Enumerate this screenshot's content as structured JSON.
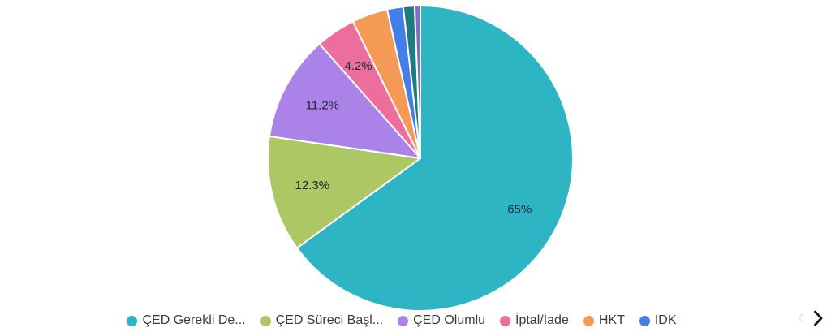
{
  "page": {
    "background": "#ffffff"
  },
  "chart_data": {
    "type": "pie",
    "title": "",
    "start_angle": "top",
    "direction": "clockwise",
    "unit": "%",
    "label_color": "#1d2733",
    "slice_border_color": "#ffffff",
    "label_radius_ratio": 0.73,
    "series": [
      {
        "name": "ÇED Gerekli De...",
        "value": 65,
        "label": "65%",
        "color": "#2eb5c4"
      },
      {
        "name": "ÇED Süreci Başl...",
        "value": 12.3,
        "label": "12.3%",
        "color": "#acc763"
      },
      {
        "name": "ÇED Olumlu",
        "value": 11.2,
        "label": "11.2%",
        "color": "#ab82e8"
      },
      {
        "name": "İptal/İade",
        "value": 4.2,
        "label": "4.2%",
        "color": "#ed6d9d"
      },
      {
        "name": "HKT",
        "value": 3.8,
        "label": "",
        "color": "#f49a54"
      },
      {
        "name": "IDK",
        "value": 1.7,
        "label": "",
        "color": "#4280e8"
      },
      {
        "name": "",
        "value": 1.2,
        "label": "",
        "color": "#1f7a82"
      },
      {
        "name": "",
        "value": 0.6,
        "label": "",
        "color": "#7a6fd0"
      }
    ],
    "legend_position": "bottom"
  },
  "legend": {
    "items": [
      {
        "label": "ÇED Gerekli De...",
        "color": "#2eb5c4"
      },
      {
        "label": "ÇED Süreci Başl...",
        "color": "#acc763"
      },
      {
        "label": "ÇED Olumlu",
        "color": "#ab82e8"
      },
      {
        "label": "İptal/İade",
        "color": "#ed6d9d"
      },
      {
        "label": "HKT",
        "color": "#f49a54"
      },
      {
        "label": "IDK",
        "color": "#4280e8"
      }
    ],
    "pagination": {
      "prev_icon": "chevron-left",
      "next_icon": "chevron-right",
      "prev_enabled": false,
      "next_enabled": true,
      "prev_color": "#e2e2e2",
      "next_color": "#141414"
    }
  }
}
